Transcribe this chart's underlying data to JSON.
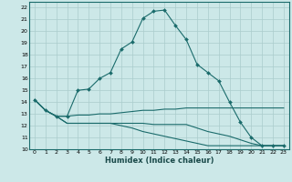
{
  "title": "",
  "xlabel": "Humidex (Indice chaleur)",
  "ylabel": "",
  "xlim": [
    -0.5,
    23.5
  ],
  "ylim": [
    10,
    22.5
  ],
  "xticks": [
    0,
    1,
    2,
    3,
    4,
    5,
    6,
    7,
    8,
    9,
    10,
    11,
    12,
    13,
    14,
    15,
    16,
    17,
    18,
    19,
    20,
    21,
    22,
    23
  ],
  "yticks": [
    10,
    11,
    12,
    13,
    14,
    15,
    16,
    17,
    18,
    19,
    20,
    21,
    22
  ],
  "bg_color": "#cce8e8",
  "grid_color": "#aacccc",
  "line_color": "#1a6b6b",
  "line1_x": [
    0,
    1,
    2,
    3,
    4,
    5,
    6,
    7,
    8,
    9,
    10,
    11,
    12,
    13,
    14,
    15,
    16,
    17,
    18,
    19,
    20,
    21,
    22,
    23
  ],
  "line1_y": [
    14.2,
    13.3,
    12.8,
    12.8,
    15.0,
    15.1,
    16.0,
    16.5,
    18.5,
    19.1,
    21.1,
    21.7,
    21.8,
    20.5,
    19.3,
    17.2,
    16.5,
    15.8,
    14.0,
    12.3,
    11.0,
    10.3,
    10.3,
    10.3
  ],
  "line2_x": [
    0,
    1,
    2,
    3,
    4,
    5,
    6,
    7,
    8,
    9,
    10,
    11,
    12,
    13,
    14,
    15,
    16,
    17,
    18,
    19,
    20,
    21,
    22,
    23
  ],
  "line2_y": [
    14.2,
    13.3,
    12.8,
    12.8,
    12.9,
    12.9,
    13.0,
    13.0,
    13.1,
    13.2,
    13.3,
    13.3,
    13.4,
    13.4,
    13.5,
    13.5,
    13.5,
    13.5,
    13.5,
    13.5,
    13.5,
    13.5,
    13.5,
    13.5
  ],
  "line3_x": [
    0,
    1,
    2,
    3,
    4,
    5,
    6,
    7,
    8,
    9,
    10,
    11,
    12,
    13,
    14,
    15,
    16,
    17,
    18,
    19,
    20,
    21,
    22,
    23
  ],
  "line3_y": [
    14.2,
    13.3,
    12.8,
    12.2,
    12.2,
    12.2,
    12.2,
    12.2,
    12.2,
    12.2,
    12.2,
    12.1,
    12.1,
    12.1,
    12.1,
    11.8,
    11.5,
    11.3,
    11.1,
    10.8,
    10.5,
    10.3,
    10.3,
    10.3
  ],
  "line4_x": [
    0,
    1,
    2,
    3,
    4,
    5,
    6,
    7,
    8,
    9,
    10,
    11,
    12,
    13,
    14,
    15,
    16,
    17,
    18,
    19,
    20,
    21,
    22,
    23
  ],
  "line4_y": [
    14.2,
    13.3,
    12.8,
    12.2,
    12.2,
    12.2,
    12.2,
    12.2,
    12.0,
    11.8,
    11.5,
    11.3,
    11.1,
    10.9,
    10.7,
    10.5,
    10.3,
    10.3,
    10.3,
    10.3,
    10.3,
    10.3,
    10.3,
    10.3
  ]
}
